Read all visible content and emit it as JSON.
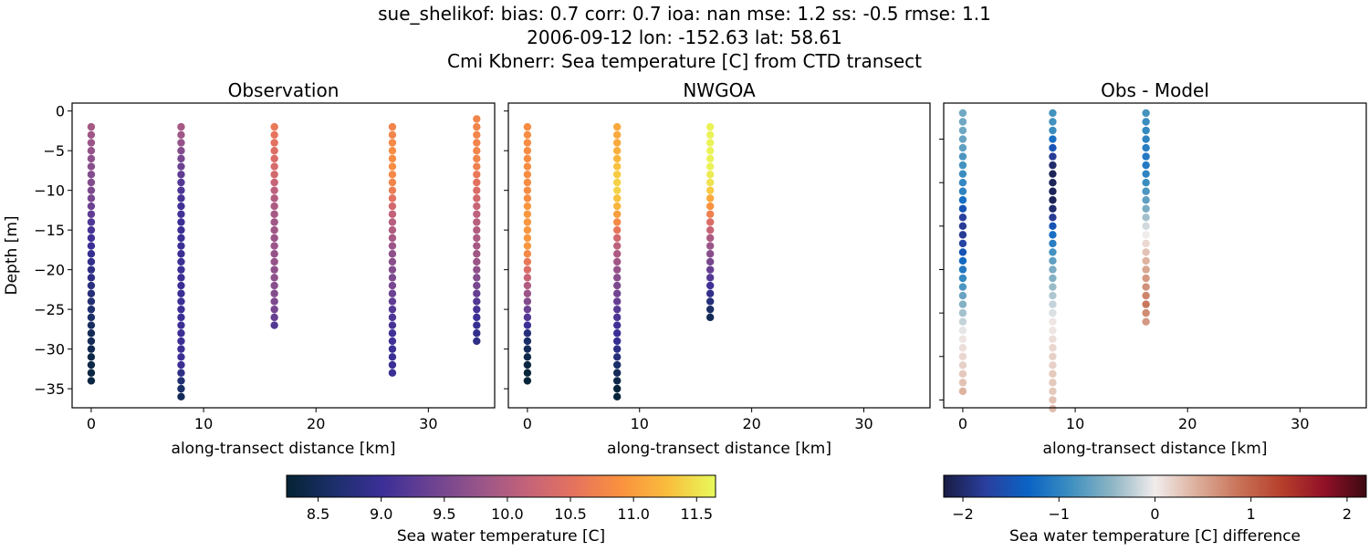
{
  "title_lines": [
    "sue_shelikof: bias: 0.7  corr: 0.7  ioa: nan  mse: 1.2  ss: -0.5  rmse: 1.1",
    "2006-09-12 lon: -152.63 lat: 58.61",
    "Cmi Kbnerr: Sea temperature [C] from CTD transect"
  ],
  "chart_data": [
    {
      "type": "scatter",
      "title": "Observation",
      "xlabel": "along-transect distance [km]",
      "ylabel": "Depth [m]",
      "xlim": [
        -1.7,
        35.9
      ],
      "ylim": [
        -37.4,
        1.0
      ],
      "xticks": [
        0,
        10,
        20,
        30
      ],
      "yticks": [
        0,
        -5,
        -10,
        -15,
        -20,
        -25,
        -30,
        -35
      ],
      "show_ytick_labels": true,
      "colorbar": "temp",
      "columns": [
        {
          "x": 0,
          "top_depth": -2,
          "values": [
            9.9,
            9.85,
            9.8,
            9.75,
            9.7,
            9.65,
            9.6,
            9.6,
            9.55,
            9.5,
            9.4,
            9.3,
            9.15,
            9.1,
            9.05,
            9.0,
            8.95,
            8.9,
            8.85,
            8.85,
            8.8,
            8.75,
            8.7,
            8.65,
            8.6,
            8.55,
            8.5,
            8.5,
            8.45,
            8.4,
            8.4,
            8.35,
            8.35
          ]
        },
        {
          "x": 8,
          "top_depth": -2,
          "values": [
            9.9,
            9.85,
            9.75,
            9.6,
            9.5,
            9.4,
            9.3,
            9.2,
            9.15,
            9.1,
            9.05,
            9.05,
            9.0,
            9.0,
            9.0,
            9.0,
            9.0,
            9.0,
            9.0,
            9.0,
            9.0,
            9.0,
            9.0,
            9.0,
            9.0,
            9.0,
            9.0,
            9.0,
            9.0,
            9.0,
            9.0,
            8.85,
            8.7,
            8.6,
            8.5
          ]
        },
        {
          "x": 16.3,
          "top_depth": -2,
          "values": [
            10.6,
            10.55,
            10.5,
            10.45,
            10.4,
            10.35,
            10.3,
            10.2,
            10.1,
            10.0,
            9.95,
            9.9,
            9.85,
            9.85,
            9.8,
            9.8,
            9.75,
            9.75,
            9.7,
            9.7,
            9.65,
            9.6,
            9.55,
            9.5,
            9.35,
            9.2
          ]
        },
        {
          "x": 26.8,
          "top_depth": -2,
          "values": [
            10.75,
            10.75,
            10.8,
            10.85,
            10.85,
            10.85,
            10.8,
            10.75,
            10.65,
            10.5,
            10.3,
            10.15,
            10.05,
            10.0,
            9.9,
            9.8,
            9.7,
            9.65,
            9.6,
            9.55,
            9.5,
            9.4,
            9.3,
            9.2,
            9.15,
            9.1,
            9.05,
            9.05,
            9.0,
            9.0,
            9.0,
            9.0
          ]
        },
        {
          "x": 34.3,
          "top_depth": -1,
          "values": [
            10.75,
            10.75,
            10.75,
            10.75,
            10.75,
            10.75,
            10.7,
            10.6,
            10.5,
            10.4,
            10.3,
            10.2,
            10.1,
            10.05,
            10.0,
            9.95,
            9.9,
            9.85,
            9.8,
            9.7,
            9.6,
            9.5,
            9.35,
            9.2,
            9.1,
            9.0,
            8.95,
            8.9,
            8.85
          ]
        }
      ]
    },
    {
      "type": "scatter",
      "title": "NWGOA",
      "xlabel": "along-transect distance [km]",
      "xlim": [
        -1.7,
        35.9
      ],
      "ylim": [
        -37.4,
        1.0
      ],
      "xticks": [
        0,
        10,
        20,
        30
      ],
      "yticks": [
        0,
        -5,
        -10,
        -15,
        -20,
        -25,
        -30,
        -35
      ],
      "show_ytick_labels": false,
      "colorbar": "temp",
      "columns": [
        {
          "x": 0,
          "top_depth": -2,
          "values": [
            10.85,
            10.85,
            10.85,
            10.85,
            10.85,
            10.85,
            10.85,
            10.85,
            10.85,
            10.85,
            10.95,
            10.95,
            10.95,
            10.95,
            10.95,
            10.95,
            10.8,
            10.6,
            10.4,
            10.2,
            10.0,
            9.8,
            9.6,
            9.4,
            9.2,
            9.0,
            8.75,
            8.6,
            8.5,
            8.4,
            8.35,
            8.3,
            8.3
          ]
        },
        {
          "x": 8,
          "top_depth": -2,
          "values": [
            11.1,
            11.1,
            11.1,
            11.15,
            11.2,
            11.3,
            11.35,
            11.4,
            11.4,
            11.3,
            11.2,
            11.0,
            10.8,
            10.55,
            10.3,
            10.1,
            9.95,
            9.85,
            9.75,
            9.65,
            9.55,
            9.45,
            9.35,
            9.25,
            9.15,
            9.05,
            9.0,
            8.95,
            8.85,
            8.75,
            8.6,
            8.5,
            8.4,
            8.3,
            8.3
          ]
        },
        {
          "x": 16.3,
          "top_depth": -2,
          "values": [
            11.6,
            11.6,
            11.6,
            11.6,
            11.6,
            11.6,
            11.55,
            11.5,
            11.35,
            11.1,
            10.9,
            10.7,
            10.4,
            10.2,
            9.95,
            9.8,
            9.65,
            9.5,
            9.35,
            9.2,
            9.05,
            8.9,
            8.75,
            8.6,
            8.5
          ]
        }
      ]
    },
    {
      "type": "scatter",
      "title": "Obs - Model",
      "xlabel": "along-transect distance [km]",
      "xlim": [
        -1.7,
        35.9
      ],
      "ylim": [
        -35.9,
        -0.85
      ],
      "xticks": [
        0,
        10,
        20,
        30
      ],
      "yticks": [
        -5,
        -10,
        -15,
        -20,
        -25,
        -30,
        -35
      ],
      "show_ytick_labels": false,
      "colorbar": "diff",
      "columns": [
        {
          "x": 0,
          "top_depth": -2,
          "values": [
            -0.6,
            -0.6,
            -0.6,
            -0.65,
            -0.7,
            -0.8,
            -0.85,
            -0.9,
            -0.95,
            -1.0,
            -1.2,
            -1.5,
            -1.75,
            -1.8,
            -1.8,
            -1.7,
            -1.5,
            -1.25,
            -1.1,
            -0.95,
            -0.8,
            -0.65,
            -0.5,
            -0.35,
            -0.2,
            -0.05,
            0.05,
            0.1,
            0.15,
            0.2,
            0.25,
            0.3,
            0.4
          ]
        },
        {
          "x": 8,
          "top_depth": -2,
          "values": [
            -0.85,
            -0.85,
            -0.9,
            -1.2,
            -1.5,
            -1.8,
            -2.0,
            -2.1,
            -2.1,
            -2.1,
            -2.1,
            -2.0,
            -1.8,
            -1.5,
            -1.2,
            -1.05,
            -0.85,
            -0.7,
            -0.55,
            -0.5,
            -0.4,
            -0.3,
            -0.2,
            -0.1,
            0.05,
            0.05,
            0.1,
            0.15,
            0.2,
            0.2,
            0.25,
            0.25,
            0.25,
            0.3,
            0.35
          ]
        },
        {
          "x": 16.3,
          "top_depth": -2,
          "values": [
            -0.85,
            -0.9,
            -0.95,
            -1.0,
            -1.05,
            -1.1,
            -1.1,
            -1.0,
            -0.9,
            -0.8,
            -0.7,
            -0.55,
            -0.35,
            -0.15,
            0.0,
            0.15,
            0.3,
            0.4,
            0.5,
            0.6,
            0.65,
            0.75,
            0.85,
            0.7,
            0.6
          ]
        }
      ]
    }
  ],
  "colorbars": {
    "temp": {
      "label": "Sea water temperature [C]",
      "range": [
        8.25,
        11.65
      ],
      "ticks": [
        8.5,
        9.0,
        9.5,
        10.0,
        10.5,
        11.0,
        11.5
      ],
      "tick_labels": [
        "8.5",
        "9.0",
        "9.5",
        "10.0",
        "10.5",
        "11.0",
        "11.5"
      ],
      "colormap": [
        "#042333",
        "#1c2f6b",
        "#3b2f97",
        "#6a4192",
        "#96548a",
        "#c2627a",
        "#e4725f",
        "#fa913f",
        "#f9bd3c",
        "#e8fa5b"
      ]
    },
    "diff": {
      "label": "Sea water temperature [C] difference",
      "range": [
        -2.2,
        2.2
      ],
      "ticks": [
        -2,
        -1,
        0,
        1,
        2
      ],
      "tick_labels": [
        "−2",
        "−1",
        "0",
        "1",
        "2"
      ],
      "colormap": [
        "#181c43",
        "#2a3f9e",
        "#0a63c4",
        "#3d8fc0",
        "#8fb6c4",
        "#f1ecec",
        "#dcae9a",
        "#c87257",
        "#b63f2b",
        "#921128",
        "#3c0912"
      ]
    }
  }
}
